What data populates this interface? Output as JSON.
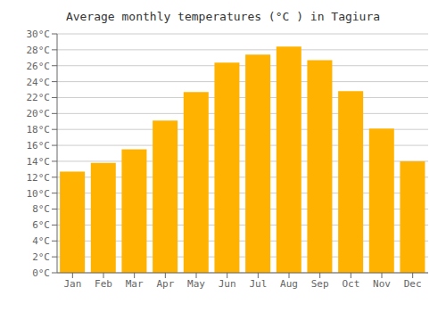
{
  "chart_data": {
    "type": "bar",
    "title": "Average monthly temperatures (°C ) in Tagiura",
    "categories": [
      "Jan",
      "Feb",
      "Mar",
      "Apr",
      "May",
      "Jun",
      "Jul",
      "Aug",
      "Sep",
      "Oct",
      "Nov",
      "Dec"
    ],
    "values": [
      12.7,
      13.8,
      15.5,
      19.1,
      22.7,
      26.4,
      27.4,
      28.4,
      26.7,
      22.8,
      18.1,
      14.0
    ],
    "color": "#FFB300",
    "ylim": [
      0,
      30
    ],
    "yticks": [
      {
        "value": 0,
        "label": "0°C"
      },
      {
        "value": 2,
        "label": "2°C"
      },
      {
        "value": 4,
        "label": "4°C"
      },
      {
        "value": 6,
        "label": "6°C"
      },
      {
        "value": 8,
        "label": "8°C"
      },
      {
        "value": 10,
        "label": "10°C"
      },
      {
        "value": 12,
        "label": "12°C"
      },
      {
        "value": 14,
        "label": "14°C"
      },
      {
        "value": 16,
        "label": "16°C"
      },
      {
        "value": 18,
        "label": "18°C"
      },
      {
        "value": 20,
        "label": "20°C"
      },
      {
        "value": 22,
        "label": "22°C"
      },
      {
        "value": 24,
        "label": "24°C"
      },
      {
        "value": 26,
        "label": "26°C"
      },
      {
        "value": 28,
        "label": "28°C"
      },
      {
        "value": 30,
        "label": "30°C"
      }
    ],
    "grid": true
  }
}
